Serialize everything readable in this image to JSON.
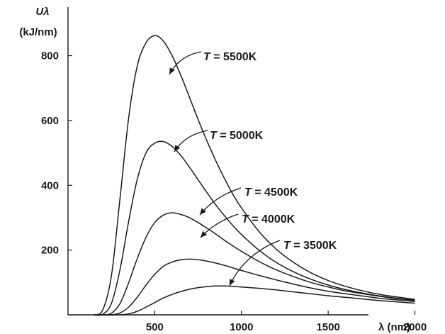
{
  "chart_data": {
    "type": "line",
    "title": "",
    "xlabel": "λ (nm)",
    "ylabel_symbol": "Uλ",
    "ylabel_unit": "(kJ/nm)",
    "xlim": [
      0,
      2100
    ],
    "ylim": [
      0,
      950
    ],
    "x_ticks": [
      500,
      1000,
      1500,
      2000
    ],
    "y_ticks": [
      200,
      400,
      600,
      800
    ],
    "x_tick_labels": [
      "500",
      "1000",
      "1500",
      "2000"
    ],
    "y_tick_labels": [
      "200",
      "400",
      "600",
      "800"
    ],
    "grid": false,
    "legend": "inline labels with arrows",
    "x": [
      150,
      200,
      250,
      300,
      350,
      400,
      450,
      500,
      550,
      600,
      650,
      700,
      750,
      800,
      850,
      900,
      950,
      1000,
      1100,
      1200,
      1300,
      1400,
      1500,
      1600,
      1700,
      1800,
      1900,
      2000
    ],
    "series": [
      {
        "name": "T = 5500K",
        "label_prefix": "T",
        "label_value": " = 5500K",
        "values": [
          0,
          15,
          120,
          360,
          610,
          770,
          840,
          862,
          845,
          800,
          740,
          672,
          603,
          538,
          478,
          423,
          373,
          330,
          258,
          203,
          162,
          130,
          106,
          88,
          74,
          63,
          55,
          48
        ]
      },
      {
        "name": "T = 5000K",
        "label_prefix": "T",
        "label_value": " = 5000K",
        "values": [
          0,
          2,
          35,
          140,
          290,
          420,
          500,
          530,
          535,
          520,
          492,
          456,
          417,
          378,
          341,
          307,
          276,
          248,
          200,
          162,
          133,
          110,
          92,
          78,
          67,
          58,
          51,
          45
        ]
      },
      {
        "name": "T = 4500K",
        "label_prefix": "T",
        "label_value": " = 4500K",
        "values": [
          0,
          0,
          5,
          35,
          100,
          175,
          240,
          285,
          308,
          315,
          310,
          300,
          285,
          268,
          250,
          231,
          213,
          196,
          165,
          139,
          118,
          100,
          86,
          74,
          65,
          57,
          50,
          44
        ]
      },
      {
        "name": "T = 4000K",
        "label_prefix": "T",
        "label_value": " = 4000K",
        "values": [
          0,
          0,
          0,
          6,
          24,
          55,
          92,
          125,
          150,
          163,
          170,
          172,
          170,
          166,
          160,
          153,
          145,
          137,
          122,
          108,
          95,
          83,
          73,
          65,
          58,
          51,
          46,
          41
        ]
      },
      {
        "name": "T = 3500K",
        "label_prefix": "T",
        "label_value": " = 3500K",
        "values": [
          0,
          0,
          0,
          0,
          3,
          11,
          24,
          38,
          52,
          63,
          72,
          79,
          84,
          87,
          89,
          89,
          88,
          86,
          82,
          77,
          71,
          65,
          59,
          54,
          49,
          44,
          40,
          36
        ]
      }
    ]
  }
}
